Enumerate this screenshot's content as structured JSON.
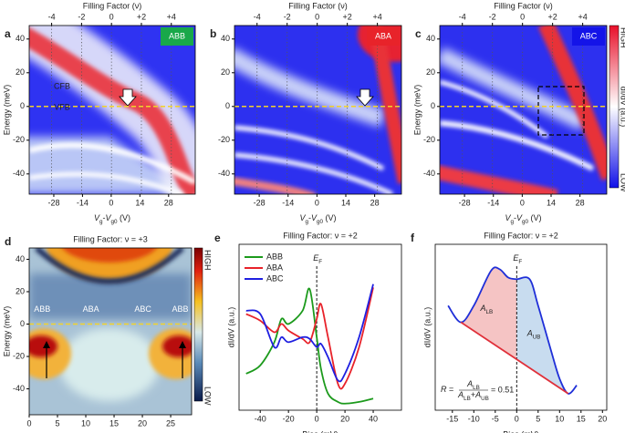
{
  "chart_data": [
    {
      "type": "heatmap",
      "panel_label": "a",
      "badge": "ABB",
      "badge_color": "#19a84a",
      "top_axis_label": "Filling Factor (ν)",
      "top_lim": [
        -5.5,
        5.6
      ],
      "top_ticks": [
        -4,
        -2,
        0,
        {
          "value": 2,
          "label": "+2"
        },
        {
          "value": 4,
          "label": "+4"
        }
      ],
      "xlim": [
        -40,
        41
      ],
      "xticks": [
        -28,
        -14,
        0,
        14,
        28
      ],
      "ylim": [
        -52,
        48
      ],
      "yticks": [
        -40,
        -20,
        0,
        20,
        40
      ],
      "x_label": [
        {
          "text": "V",
          "italic": true
        },
        {
          "text": "g",
          "sub": true
        },
        {
          "text": "-"
        },
        {
          "text": "V",
          "italic": true
        },
        {
          "text": "g0",
          "sub": true
        },
        {
          "text": " (V)"
        }
      ],
      "y_label": "Energy (meV)",
      "fermi_line_y": 0,
      "annotations": [
        "CFB",
        "VFB"
      ]
    },
    {
      "type": "heatmap",
      "panel_label": "b",
      "badge": "ABA",
      "badge_color": "#e8232a",
      "top_axis_label": "Filling Factor (ν)",
      "top_lim": [
        -5.5,
        5.6
      ],
      "top_ticks": [
        -4,
        -2,
        0,
        {
          "value": 2,
          "label": "+2"
        },
        {
          "value": 4,
          "label": "+4"
        }
      ],
      "xlim": [
        -40,
        41
      ],
      "xticks": [
        -28,
        -14,
        0,
        14,
        28
      ],
      "ylim": [
        -52,
        48
      ],
      "yticks": [
        -40,
        -20,
        0,
        20,
        40
      ],
      "x_label": [
        {
          "text": "V",
          "italic": true
        },
        {
          "text": "g",
          "sub": true
        },
        {
          "text": "-"
        },
        {
          "text": "V",
          "italic": true
        },
        {
          "text": "g0",
          "sub": true
        },
        {
          "text": " (V)"
        }
      ],
      "fermi_line_y": 0
    },
    {
      "type": "heatmap",
      "panel_label": "c",
      "badge": "ABC",
      "badge_color": "#1414e8",
      "top_axis_label": "Filling Factor (ν)",
      "top_lim": [
        -5.5,
        5.6
      ],
      "top_ticks": [
        -4,
        -2,
        0,
        {
          "value": 2,
          "label": "+2"
        },
        {
          "value": 4,
          "label": "+4"
        }
      ],
      "xlim": [
        -40,
        41
      ],
      "xticks": [
        -28,
        -14,
        0,
        14,
        28
      ],
      "ylim": [
        -52,
        48
      ],
      "yticks": [
        -40,
        -20,
        0,
        20,
        40
      ],
      "x_label": [
        {
          "text": "V",
          "italic": true
        },
        {
          "text": "g",
          "sub": true
        },
        {
          "text": "-"
        },
        {
          "text": "V",
          "italic": true
        },
        {
          "text": "g0",
          "sub": true
        },
        {
          "text": " (V)"
        }
      ],
      "y_label": "Energy (meV)",
      "fermi_line_y": 0,
      "colorbar_high": "HIGH",
      "colorbar_low": "LOW",
      "colorbar_label": "dI/dV (a.u.)"
    },
    {
      "type": "heatmap",
      "panel_label": "d",
      "title": "Filling Factor: ν = +3",
      "xlim": [
        0,
        28.7
      ],
      "xticks": [
        0,
        5,
        10,
        15,
        20,
        25
      ],
      "ylim": [
        -56,
        47
      ],
      "yticks": [
        -40,
        -20,
        0,
        20,
        40
      ],
      "x_label": "Distance (nm)",
      "y_label": "Energy (meV)",
      "fermi_line_y": 0,
      "region_labels": [
        "ABB",
        "ABA",
        "ABC",
        "ABB"
      ],
      "colorbar_high": "HIGH",
      "colorbar_low": "LOW"
    },
    {
      "type": "line",
      "panel_label": "e",
      "title": "Filling Factor: ν = +2",
      "xlim": [
        -55,
        60
      ],
      "xticks": [
        -40,
        -20,
        0,
        20,
        40
      ],
      "ylim": [
        0,
        10
      ],
      "x_label": "Bias (mV)",
      "y_label": "dI/dV (a.u.)",
      "ef_x": 0,
      "ef_label": [
        {
          "text": "E",
          "italic": true
        },
        {
          "text": "F",
          "sub": true
        }
      ],
      "legend": true,
      "x": [
        -50,
        -40,
        -30,
        -25,
        -20,
        -10,
        -5,
        0,
        3,
        8,
        15,
        20,
        30,
        40
      ],
      "series": [
        {
          "name": "ABB",
          "color": "#1c9a1c",
          "values": [
            2.2,
            2.7,
            4.1,
            5.5,
            5.2,
            6.0,
            7.3,
            4.4,
            2.5,
            1.0,
            0.5,
            0.4,
            0.5,
            0.7
          ]
        },
        {
          "name": "ABA",
          "color": "#e8222a",
          "values": [
            5.8,
            5.4,
            4.7,
            5.2,
            4.8,
            4.3,
            4.1,
            5.5,
            6.4,
            4.4,
            1.6,
            1.6,
            3.8,
            7.4
          ]
        },
        {
          "name": "ABC",
          "color": "#1f1fe0",
          "values": [
            6.0,
            5.8,
            3.8,
            4.4,
            4.1,
            4.4,
            4.3,
            3.8,
            4.0,
            3.2,
            1.8,
            2.2,
            4.4,
            7.6
          ]
        }
      ]
    },
    {
      "type": "line",
      "panel_label": "f",
      "title": "Filling Factor: ν = +2",
      "xlim": [
        -19,
        21
      ],
      "xticks": [
        -15,
        -10,
        -5,
        0,
        5,
        10,
        15,
        20
      ],
      "ylim": [
        0,
        10
      ],
      "x_label": "Bias (mV)",
      "y_label": "dI/dV (a.u.)",
      "ef_x": 0,
      "ef_label": [
        {
          "text": "E",
          "italic": true
        },
        {
          "text": "F",
          "sub": true
        }
      ],
      "series": [
        {
          "color": "#1f2fd8",
          "x": [
            -16,
            -13,
            -10,
            -6,
            -4,
            -2,
            0,
            3,
            5,
            8,
            10,
            12,
            14
          ],
          "values": [
            6.3,
            5.3,
            6.3,
            8.4,
            8.5,
            8.0,
            7.9,
            7.9,
            6.3,
            3.6,
            1.9,
            1.0,
            1.5
          ]
        },
        {
          "color": "#e0303a",
          "x": [
            -13,
            12
          ],
          "values": [
            5.3,
            1.0
          ]
        }
      ],
      "area_lower_label": [
        {
          "text": "A",
          "italic": true
        },
        {
          "text": "LB",
          "sub": true
        }
      ],
      "area_upper_label": [
        {
          "text": "A",
          "italic": true
        },
        {
          "text": "UB",
          "sub": true
        }
      ],
      "area_lower_color": "#f5c4c4",
      "area_upper_color": "#c8dcef",
      "formula_lhs": [
        {
          "text": "R",
          "italic": true
        },
        {
          "text": " ="
        }
      ],
      "formula_numerator": [
        {
          "text": "A",
          "italic": true
        },
        {
          "text": "LB",
          "sub": true
        }
      ],
      "formula_denominator": [
        {
          "text": "A",
          "italic": true
        },
        {
          "text": "LB",
          "sub": true
        },
        {
          "text": "+"
        },
        {
          "text": "A",
          "italic": true
        },
        {
          "text": "UB",
          "sub": true
        }
      ],
      "formula_rhs": "= 0.51"
    }
  ]
}
